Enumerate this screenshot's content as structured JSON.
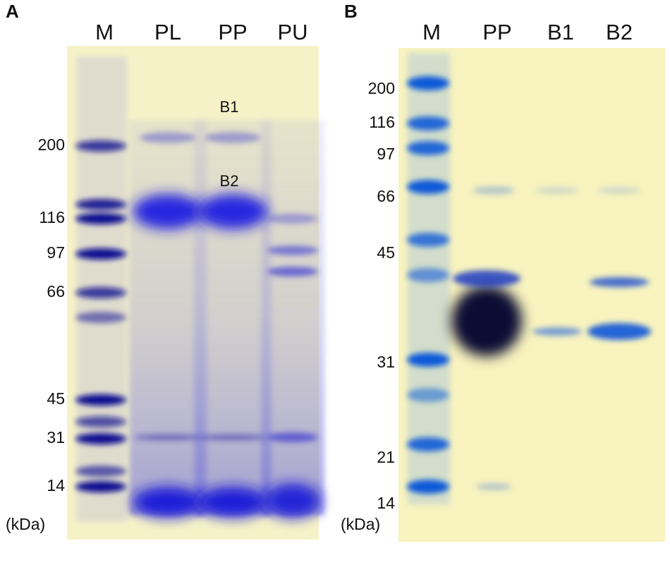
{
  "panels": [
    {
      "label": "A",
      "lanes": [
        "M",
        "PL",
        "PP",
        "PU"
      ],
      "markers": [
        "200",
        "116",
        "97",
        "66",
        "45",
        "31",
        "14"
      ],
      "unit": "(kDa)",
      "band_labels": [
        "B1",
        "B2"
      ]
    },
    {
      "label": "B",
      "lanes": [
        "M",
        "PP",
        "B1",
        "B2"
      ],
      "markers": [
        "200",
        "116",
        "97",
        "66",
        "45",
        "31",
        "21",
        "14"
      ],
      "unit": "(kDa)"
    }
  ]
}
